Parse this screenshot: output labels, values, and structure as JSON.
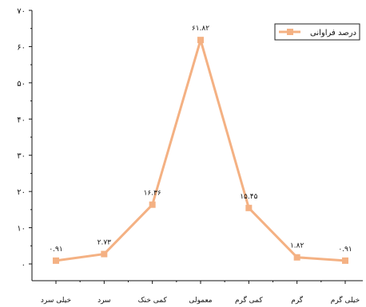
{
  "chart_data": {
    "type": "line",
    "title": "",
    "xlabel": "",
    "ylabel": "",
    "ylim": [
      0,
      70
    ],
    "y_ticks": [
      {
        "value": 0,
        "label": "۰"
      },
      {
        "value": 10,
        "label": "۱۰"
      },
      {
        "value": 20,
        "label": "۲۰"
      },
      {
        "value": 30,
        "label": "۳۰"
      },
      {
        "value": 40,
        "label": "۴۰"
      },
      {
        "value": 50,
        "label": "۵۰"
      },
      {
        "value": 60,
        "label": "۶۰"
      },
      {
        "value": 70,
        "label": "۷۰"
      }
    ],
    "categories": [
      "خیلی سرد",
      "سرد",
      "کمی خنک",
      "معمولی",
      "کمی گرم",
      "گرم",
      "خیلی گرم"
    ],
    "series": [
      {
        "name": "درصد فراوانی",
        "color": "#F4B183",
        "values": [
          0.91,
          2.73,
          16.36,
          61.82,
          15.45,
          1.82,
          0.91
        ],
        "value_labels": [
          "۰.۹۱",
          "۲.۷۳",
          "۱۶.۳۶",
          "۶۱.۸۲",
          "۱۵.۴۵",
          "۱.۸۲",
          "۰.۹۱"
        ]
      }
    ],
    "grid": false,
    "legend": {
      "position": "top-right",
      "label": "درصد فراوانی"
    }
  }
}
